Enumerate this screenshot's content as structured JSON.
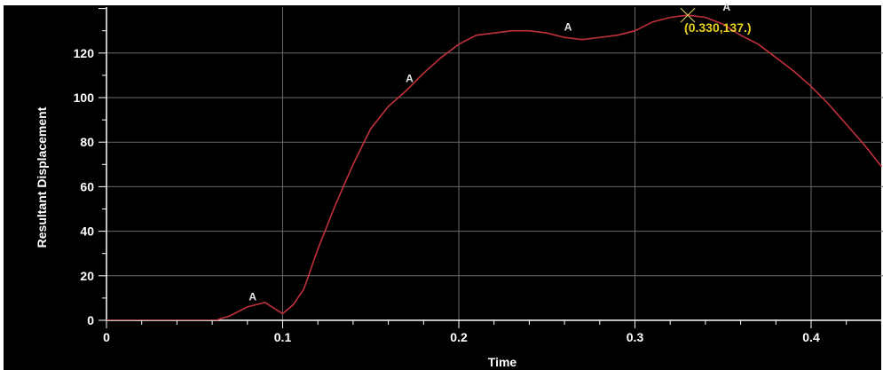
{
  "chart_data": {
    "type": "line",
    "xlabel": "Time",
    "ylabel": "Resultant Displacement",
    "xlim": [
      0,
      0.44
    ],
    "ylim": [
      0,
      140
    ],
    "x_ticks": [
      "0",
      "0.1",
      "0.2",
      "0.3",
      "0.4"
    ],
    "y_ticks": [
      "0",
      "20",
      "40",
      "60",
      "80",
      "100",
      "120"
    ],
    "x_tick_values": [
      0,
      0.1,
      0.2,
      0.3,
      0.4
    ],
    "y_tick_values": [
      0,
      20,
      40,
      60,
      80,
      100,
      120
    ],
    "grid": true,
    "series": [
      {
        "marker_label": "A",
        "color": "#c0303a",
        "x": [
          0,
          0.02,
          0.04,
          0.062,
          0.07,
          0.08,
          0.09,
          0.1,
          0.106,
          0.112,
          0.12,
          0.13,
          0.14,
          0.15,
          0.16,
          0.17,
          0.18,
          0.19,
          0.2,
          0.21,
          0.22,
          0.23,
          0.24,
          0.25,
          0.26,
          0.27,
          0.28,
          0.29,
          0.3,
          0.31,
          0.32,
          0.33,
          0.34,
          0.35,
          0.36,
          0.37,
          0.38,
          0.39,
          0.4,
          0.41,
          0.42,
          0.43,
          0.44
        ],
        "y": [
          0,
          0,
          0,
          0,
          2,
          6,
          8,
          3,
          7,
          14,
          32,
          52,
          70,
          86,
          96,
          103,
          111,
          118,
          124,
          128,
          129,
          130,
          130,
          129,
          127,
          126,
          127,
          128,
          130,
          134,
          136,
          137,
          136,
          133,
          128,
          124,
          118,
          112,
          105,
          97,
          88,
          79,
          69
        ]
      }
    ],
    "marker_points": [
      {
        "label": "A",
        "x": 0.083,
        "y": 7
      },
      {
        "label": "A",
        "x": 0.172,
        "y": 105
      },
      {
        "label": "A",
        "x": 0.262,
        "y": 128
      },
      {
        "label": "A",
        "x": 0.352,
        "y": 137
      }
    ],
    "annotation": {
      "text": "(0.330,137.)",
      "x": 0.33,
      "y": 137
    }
  },
  "colors": {
    "background": "#000000",
    "axis": "#ffffff",
    "grid": "#6a6a6a",
    "line": "#c0303a",
    "annotation": "#e8d020",
    "cursor": "#d8c860"
  }
}
